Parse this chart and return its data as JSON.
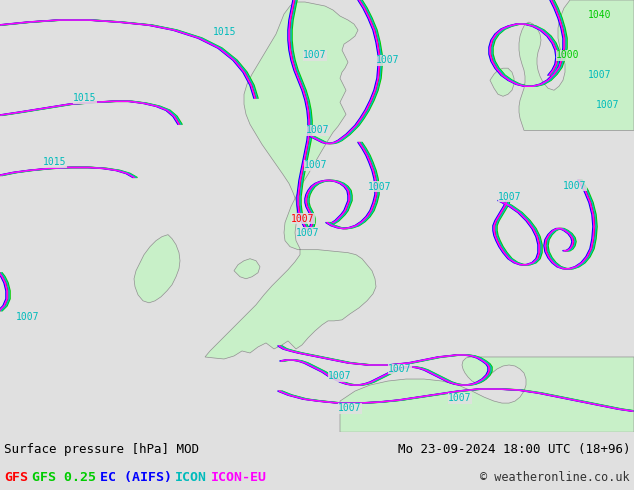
{
  "title_left": "Surface pressure [hPa] MOD",
  "title_right": "Mo 23-09-2024 18:00 UTC (18+96)",
  "copyright": "© weatheronline.co.uk",
  "footer_bg": "#d0d0d0",
  "sea_color": "#e0e0e0",
  "land_color": "#c8f0c8",
  "land_edge": "#909090",
  "fig_width": 6.34,
  "fig_height": 4.9,
  "dpi": 100,
  "colors": {
    "GFS": "#ff0000",
    "GFS025": "#00cc00",
    "EC": "#0000ff",
    "ICON": "#00bbbb",
    "ICONEU": "#ff00ff"
  },
  "legend": [
    {
      "label": "GFS",
      "color": "#ff0000"
    },
    {
      "label": "GFS 0.25",
      "color": "#00cc00"
    },
    {
      "label": "EC (AIFS)",
      "color": "#0000ff"
    },
    {
      "label": "ICON",
      "color": "#00bbbb"
    },
    {
      "label": "ICON-EU",
      "color": "#ff00ff"
    }
  ]
}
